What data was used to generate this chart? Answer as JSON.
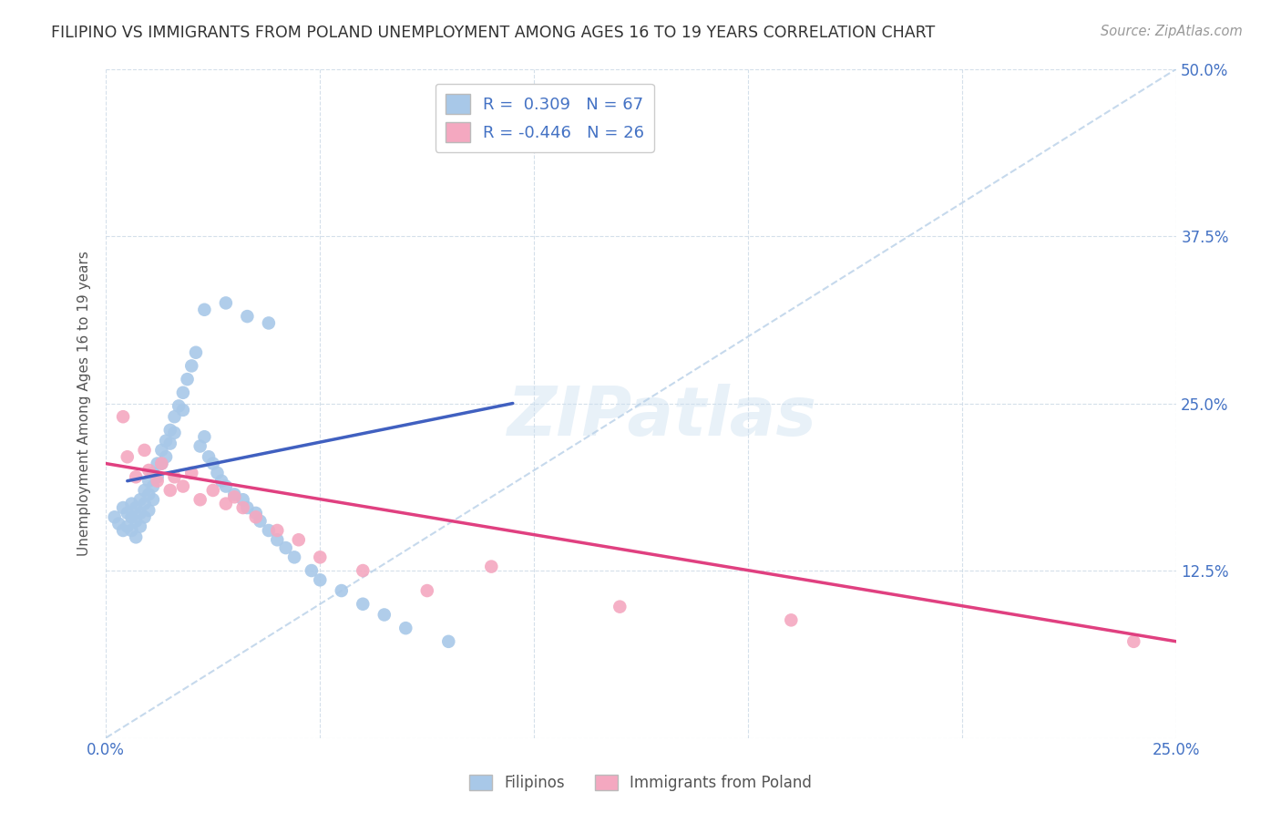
{
  "title": "FILIPINO VS IMMIGRANTS FROM POLAND UNEMPLOYMENT AMONG AGES 16 TO 19 YEARS CORRELATION CHART",
  "source": "Source: ZipAtlas.com",
  "ylabel": "Unemployment Among Ages 16 to 19 years",
  "xlim": [
    0.0,
    0.25
  ],
  "ylim": [
    0.0,
    0.5
  ],
  "R_filipino": 0.309,
  "N_filipino": 67,
  "R_poland": -0.446,
  "N_poland": 26,
  "color_filipino": "#a8c8e8",
  "color_poland": "#f4a8c0",
  "line_color_filipino": "#4060c0",
  "line_color_poland": "#e04080",
  "diag_line_color": "#b8d0e8",
  "background_color": "#ffffff",
  "grid_color": "#d0dce8",
  "filipino_x": [
    0.002,
    0.003,
    0.004,
    0.004,
    0.005,
    0.005,
    0.006,
    0.006,
    0.006,
    0.007,
    0.007,
    0.007,
    0.008,
    0.008,
    0.008,
    0.009,
    0.009,
    0.009,
    0.01,
    0.01,
    0.01,
    0.011,
    0.011,
    0.011,
    0.012,
    0.012,
    0.013,
    0.013,
    0.014,
    0.014,
    0.015,
    0.015,
    0.016,
    0.016,
    0.017,
    0.018,
    0.018,
    0.019,
    0.02,
    0.021,
    0.022,
    0.023,
    0.024,
    0.025,
    0.026,
    0.027,
    0.028,
    0.03,
    0.032,
    0.033,
    0.035,
    0.036,
    0.038,
    0.04,
    0.042,
    0.044,
    0.048,
    0.05,
    0.055,
    0.06,
    0.065,
    0.07,
    0.08,
    0.023,
    0.028,
    0.033,
    0.038
  ],
  "filipino_y": [
    0.165,
    0.16,
    0.172,
    0.155,
    0.168,
    0.158,
    0.175,
    0.165,
    0.155,
    0.172,
    0.162,
    0.15,
    0.178,
    0.168,
    0.158,
    0.185,
    0.175,
    0.165,
    0.192,
    0.182,
    0.17,
    0.198,
    0.188,
    0.178,
    0.205,
    0.195,
    0.215,
    0.205,
    0.222,
    0.21,
    0.23,
    0.22,
    0.24,
    0.228,
    0.248,
    0.258,
    0.245,
    0.268,
    0.278,
    0.288,
    0.218,
    0.225,
    0.21,
    0.205,
    0.198,
    0.192,
    0.188,
    0.182,
    0.178,
    0.172,
    0.168,
    0.162,
    0.155,
    0.148,
    0.142,
    0.135,
    0.125,
    0.118,
    0.11,
    0.1,
    0.092,
    0.082,
    0.072,
    0.32,
    0.325,
    0.315,
    0.31
  ],
  "poland_x": [
    0.004,
    0.005,
    0.007,
    0.009,
    0.01,
    0.012,
    0.013,
    0.015,
    0.016,
    0.018,
    0.02,
    0.022,
    0.025,
    0.028,
    0.03,
    0.032,
    0.035,
    0.04,
    0.045,
    0.05,
    0.06,
    0.075,
    0.09,
    0.12,
    0.16,
    0.24
  ],
  "poland_y": [
    0.24,
    0.21,
    0.195,
    0.215,
    0.2,
    0.192,
    0.205,
    0.185,
    0.195,
    0.188,
    0.198,
    0.178,
    0.185,
    0.175,
    0.18,
    0.172,
    0.165,
    0.155,
    0.148,
    0.135,
    0.125,
    0.11,
    0.128,
    0.098,
    0.088,
    0.072
  ],
  "fil_line_x": [
    0.005,
    0.095
  ],
  "fil_line_y": [
    0.192,
    0.25
  ],
  "pol_line_x": [
    0.0,
    0.25
  ],
  "pol_line_y": [
    0.205,
    0.072
  ]
}
